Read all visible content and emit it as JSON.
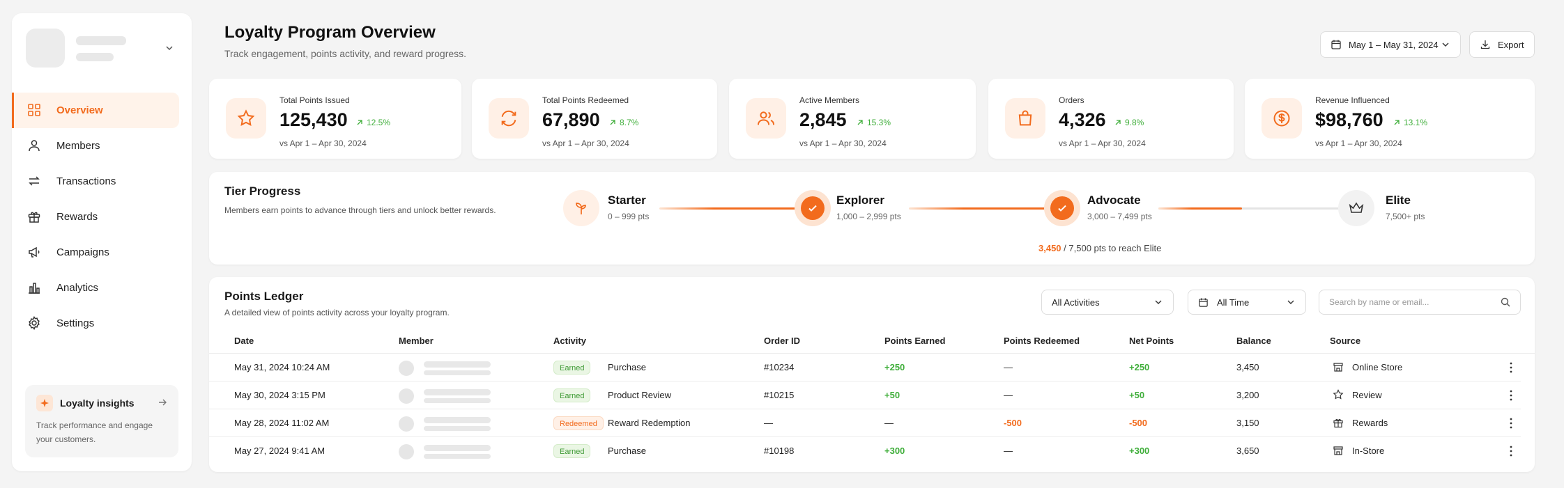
{
  "nav": {
    "items": [
      {
        "label": "Overview",
        "icon": "grid-icon"
      },
      {
        "label": "Members",
        "icon": "user-icon"
      },
      {
        "label": "Transactions",
        "icon": "arrows-icon"
      },
      {
        "label": "Rewards",
        "icon": "gift-icon"
      },
      {
        "label": "Campaigns",
        "icon": "megaphone-icon"
      },
      {
        "label": "Analytics",
        "icon": "bar-chart-icon"
      },
      {
        "label": "Settings",
        "icon": "gear-icon"
      }
    ],
    "active": "Overview"
  },
  "insights": {
    "title": "Loyalty insights",
    "text": "Track performance and engage your customers."
  },
  "header": {
    "title": "Loyalty Program Overview",
    "subtitle": "Track engagement, points activity, and reward progress.",
    "date_range": "May 1 – May 31, 2024",
    "export_label": "Export"
  },
  "stats": [
    {
      "label": "Total Points Issued",
      "value": "125,430",
      "change": "12.5%",
      "vs": "vs Apr 1 – Apr 30, 2024",
      "icon": "star-icon"
    },
    {
      "label": "Total Points Redeemed",
      "value": "67,890",
      "change": "8.7%",
      "vs": "vs Apr 1 – Apr 30, 2024",
      "icon": "refresh-icon"
    },
    {
      "label": "Active Members",
      "value": "2,845",
      "change": "15.3%",
      "vs": "vs Apr 1 – Apr 30, 2024",
      "icon": "users-icon"
    },
    {
      "label": "Orders",
      "value": "4,326",
      "change": "9.8%",
      "vs": "vs Apr 1 – Apr 30, 2024",
      "icon": "bag-icon"
    },
    {
      "label": "Revenue Influenced",
      "value": "$98,760",
      "change": "13.1%",
      "vs": "vs Apr 1 – Apr 30, 2024",
      "icon": "dollar-icon"
    }
  ],
  "tiers": {
    "title": "Tier Progress",
    "description": "Members earn points to advance through tiers and unlock better rewards.",
    "levels": [
      {
        "name": "Starter",
        "range": "0 – 999 pts",
        "icon": "sprout-icon"
      },
      {
        "name": "Explorer",
        "range": "1,000 – 2,999 pts",
        "icon": "check-icon"
      },
      {
        "name": "Advocate",
        "range": "3,000 – 7,499 pts",
        "icon": "check-icon"
      },
      {
        "name": "Elite",
        "range": "7,500+ pts",
        "icon": "crown-icon"
      }
    ],
    "progress_current": "3,450",
    "progress_rest": "/ 7,500 pts to reach Elite",
    "progress_fraction": 0.46
  },
  "ledger": {
    "title": "Points Ledger",
    "description": "A detailed view of points activity across your loyalty program.",
    "activity_filter": "All Activities",
    "time_filter": "All Time",
    "search_placeholder": "Search by name or email...",
    "columns": [
      "Date",
      "Member",
      "Activity",
      "Order ID",
      "Points Earned",
      "Points Redeemed",
      "Net Points",
      "Balance",
      "Source"
    ],
    "rows": [
      {
        "date": "May 31, 2024 10:24 AM",
        "badge": "Earned",
        "activity": "Purchase",
        "order": "#10234",
        "earned": "+250",
        "redeemed": "—",
        "net": "+250",
        "balance": "3,450",
        "source": "Online Store",
        "source_icon": "store-icon"
      },
      {
        "date": "May 30, 2024 3:15 PM",
        "badge": "Earned",
        "activity": "Product Review",
        "order": "#10215",
        "earned": "+50",
        "redeemed": "—",
        "net": "+50",
        "balance": "3,200",
        "source": "Review",
        "source_icon": "star-icon"
      },
      {
        "date": "May 28, 2024 11:02 AM",
        "badge": "Redeemed",
        "activity": "Reward Redemption",
        "order": "—",
        "earned": "—",
        "redeemed": "-500",
        "net": "-500",
        "balance": "3,150",
        "source": "Rewards",
        "source_icon": "gift-icon"
      },
      {
        "date": "May 27, 2024 9:41 AM",
        "badge": "Earned",
        "activity": "Purchase",
        "order": "#10198",
        "earned": "+300",
        "redeemed": "—",
        "net": "+300",
        "balance": "3,650",
        "source": "In-Store",
        "source_icon": "store-icon"
      }
    ]
  },
  "colors": {
    "accent": "#f26b1d",
    "positive": "#3fae3a",
    "accent_soft": "#fff0e6"
  }
}
